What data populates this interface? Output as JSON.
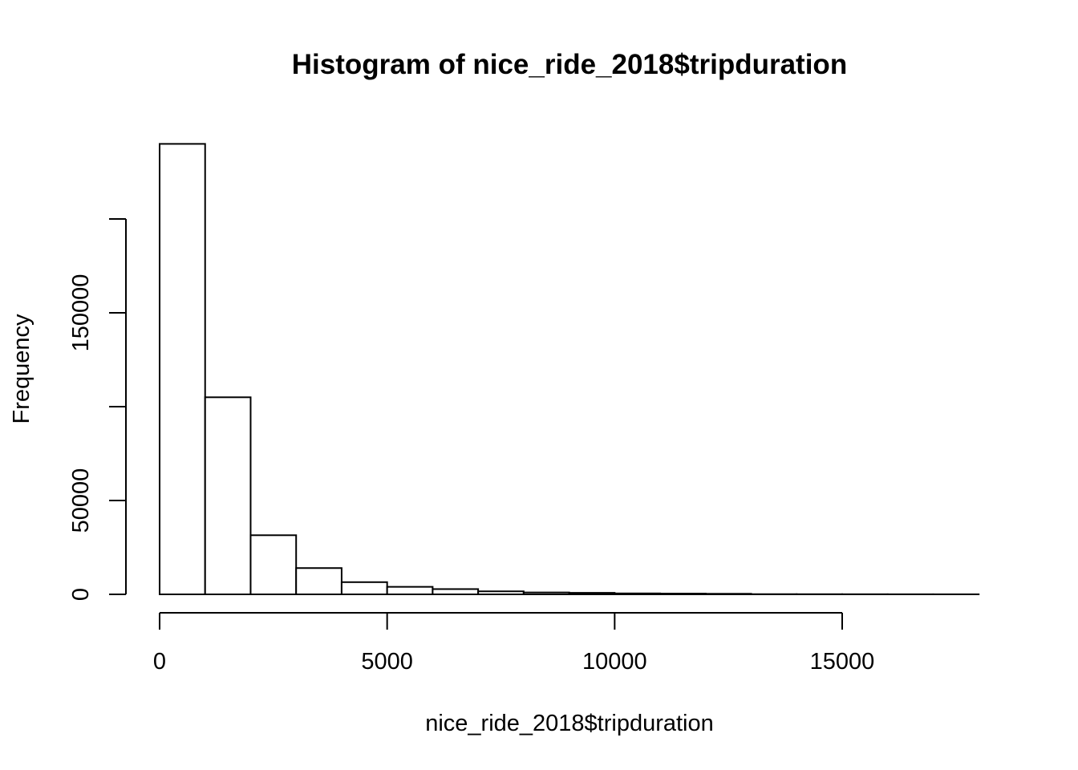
{
  "chart_data": {
    "type": "bar",
    "subtype": "histogram",
    "title": "Histogram of nice_ride_2018$tripduration",
    "xlabel": "nice_ride_2018$tripduration",
    "ylabel": "Frequency",
    "bin_width": 1000,
    "bins": [
      {
        "start": 0,
        "end": 1000,
        "count": 240000
      },
      {
        "start": 1000,
        "end": 2000,
        "count": 105000
      },
      {
        "start": 2000,
        "end": 3000,
        "count": 31500
      },
      {
        "start": 3000,
        "end": 4000,
        "count": 14000
      },
      {
        "start": 4000,
        "end": 5000,
        "count": 6500
      },
      {
        "start": 5000,
        "end": 6000,
        "count": 4000
      },
      {
        "start": 6000,
        "end": 7000,
        "count": 2800
      },
      {
        "start": 7000,
        "end": 8000,
        "count": 1600
      },
      {
        "start": 8000,
        "end": 9000,
        "count": 1000
      },
      {
        "start": 9000,
        "end": 10000,
        "count": 800
      },
      {
        "start": 10000,
        "end": 11000,
        "count": 500
      },
      {
        "start": 11000,
        "end": 12000,
        "count": 400
      },
      {
        "start": 12000,
        "end": 13000,
        "count": 300
      },
      {
        "start": 13000,
        "end": 14000,
        "count": 100
      },
      {
        "start": 14000,
        "end": 15000,
        "count": 80
      },
      {
        "start": 15000,
        "end": 16000,
        "count": 60
      },
      {
        "start": 16000,
        "end": 17000,
        "count": 40
      },
      {
        "start": 17000,
        "end": 18000,
        "count": 30
      }
    ],
    "xlim": [
      0,
      18000
    ],
    "ylim": [
      0,
      240000
    ],
    "x_axis_range": [
      0,
      15000
    ],
    "y_axis_range": [
      0,
      200000
    ],
    "x_ticks": [
      0,
      5000,
      10000,
      15000
    ],
    "y_ticks": [
      0,
      50000,
      100000,
      150000,
      200000
    ],
    "x_tick_labels": [
      "0",
      "5000",
      "10000",
      "15000"
    ],
    "y_tick_labels": [
      "0",
      "50000",
      "",
      "150000",
      ""
    ],
    "grid": false,
    "legend": "none",
    "colors": {
      "bar_fill": "#ffffff",
      "bar_stroke": "#000000"
    }
  }
}
